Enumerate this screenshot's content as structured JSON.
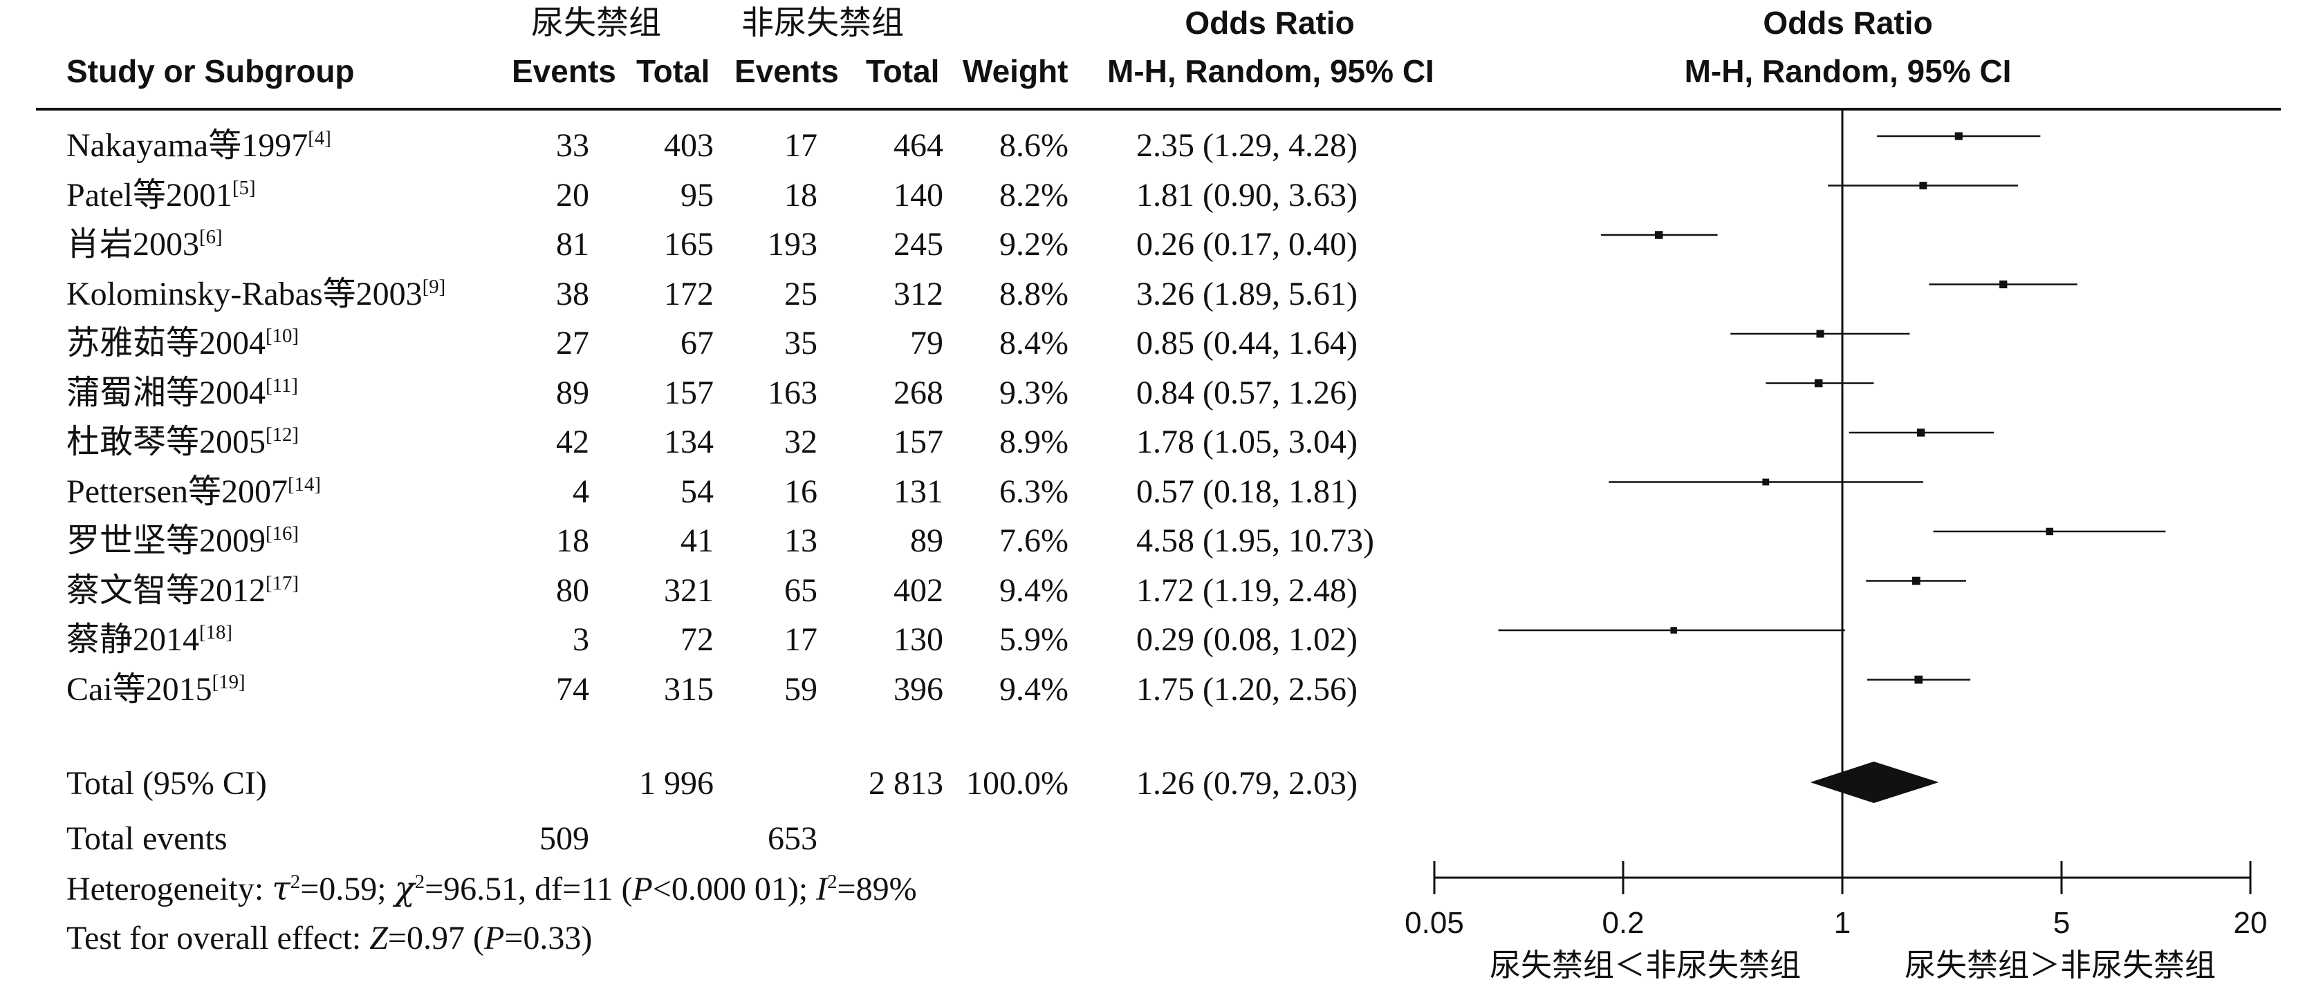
{
  "header": {
    "study_col": "Study or Subgroup",
    "group1": "尿失禁组",
    "group2": "非尿失禁组",
    "events": "Events",
    "total": "Total",
    "weight": "Weight",
    "or_title": "Odds Ratio",
    "or_method": "M-H, Random, 95% CI",
    "plot_title": "Odds Ratio",
    "plot_method": "M-H, Random, 95% CI"
  },
  "rows": [
    {
      "study": "Nakayama等1997",
      "ref": "[4]",
      "e1": "33",
      "t1": "403",
      "e2": "17",
      "t2": "464",
      "weight": "8.6%",
      "ci": "2.35 (1.29, 4.28)"
    },
    {
      "study": "Patel等2001",
      "ref": "[5]",
      "e1": "20",
      "t1": "95",
      "e2": "18",
      "t2": "140",
      "weight": "8.2%",
      "ci": "1.81 (0.90, 3.63)"
    },
    {
      "study": "肖岩2003",
      "ref": "[6]",
      "e1": "81",
      "t1": "165",
      "e2": "193",
      "t2": "245",
      "weight": "9.2%",
      "ci": "0.26 (0.17, 0.40)"
    },
    {
      "study": "Kolominsky-Rabas等2003",
      "ref": "[9]",
      "e1": "38",
      "t1": "172",
      "e2": "25",
      "t2": "312",
      "weight": "8.8%",
      "ci": "3.26 (1.89, 5.61)"
    },
    {
      "study": "苏雅茹等2004",
      "ref": "[10]",
      "e1": "27",
      "t1": "67",
      "e2": "35",
      "t2": "79",
      "weight": "8.4%",
      "ci": "0.85 (0.44, 1.64)"
    },
    {
      "study": "蒲蜀湘等2004",
      "ref": "[11]",
      "e1": "89",
      "t1": "157",
      "e2": "163",
      "t2": "268",
      "weight": "9.3%",
      "ci": "0.84 (0.57, 1.26)"
    },
    {
      "study": "杜敢琴等2005",
      "ref": "[12]",
      "e1": "42",
      "t1": "134",
      "e2": "32",
      "t2": "157",
      "weight": "8.9%",
      "ci": "1.78 (1.05, 3.04)"
    },
    {
      "study": "Pettersen等2007",
      "ref": "[14]",
      "e1": "4",
      "t1": "54",
      "e2": "16",
      "t2": "131",
      "weight": "6.3%",
      "ci": "0.57 (0.18, 1.81)"
    },
    {
      "study": "罗世坚等2009",
      "ref": "[16]",
      "e1": "18",
      "t1": "41",
      "e2": "13",
      "t2": "89",
      "weight": "7.6%",
      "ci": "4.58 (1.95, 10.73)"
    },
    {
      "study": "蔡文智等2012",
      "ref": "[17]",
      "e1": "80",
      "t1": "321",
      "e2": "65",
      "t2": "402",
      "weight": "9.4%",
      "ci": "1.72 (1.19, 2.48)"
    },
    {
      "study": "蔡静2014",
      "ref": "[18]",
      "e1": "3",
      "t1": "72",
      "e2": "17",
      "t2": "130",
      "weight": "5.9%",
      "ci": "0.29 (0.08, 1.02)"
    },
    {
      "study": "Cai等2015",
      "ref": "[19]",
      "e1": "74",
      "t1": "315",
      "e2": "59",
      "t2": "396",
      "weight": "9.4%",
      "ci": "1.75 (1.20, 2.56)"
    }
  ],
  "total": {
    "label": "Total (95% CI)",
    "t1": "1 996",
    "t2": "2 813",
    "weight": "100.0%",
    "ci": "1.26 (0.79, 2.03)"
  },
  "total_events": {
    "label": "Total events",
    "e1": "509",
    "e2": "653"
  },
  "heterogeneity": {
    "label": "Heterogeneity: ",
    "tau_sym": "τ",
    "tau_val": "=0.59; ",
    "chi_sym": "χ",
    "chi_val": "=96.51, df=11 (",
    "p_sym": "P",
    "p_val": "<0.000 01); ",
    "i_sym": "I",
    "i_val": "=89%",
    "sq": "2"
  },
  "overall": {
    "label": "Test for overall effect: ",
    "z_sym": "Z",
    "z_val": "=0.97 (",
    "p_sym": "P",
    "p_val": "=0.33)"
  },
  "chart_data": {
    "type": "forest",
    "scale": "log",
    "xlim": [
      0.05,
      20
    ],
    "ticks": [
      {
        "value": 0.05,
        "label": "0.05"
      },
      {
        "value": 0.2,
        "label": "0.2"
      },
      {
        "value": 1,
        "label": "1"
      },
      {
        "value": 5,
        "label": "5"
      },
      {
        "value": 20,
        "label": "20"
      }
    ],
    "reference_line": 1,
    "direction_labels": {
      "left": "尿失禁组＜非尿失禁组",
      "right": "尿失禁组＞非尿失禁组"
    },
    "points": [
      {
        "or": 2.35,
        "lo": 1.29,
        "hi": 4.28,
        "weight": 8.6
      },
      {
        "or": 1.81,
        "lo": 0.9,
        "hi": 3.63,
        "weight": 8.2
      },
      {
        "or": 0.26,
        "lo": 0.17,
        "hi": 0.4,
        "weight": 9.2
      },
      {
        "or": 3.26,
        "lo": 1.89,
        "hi": 5.61,
        "weight": 8.8
      },
      {
        "or": 0.85,
        "lo": 0.44,
        "hi": 1.64,
        "weight": 8.4
      },
      {
        "or": 0.84,
        "lo": 0.57,
        "hi": 1.26,
        "weight": 9.3
      },
      {
        "or": 1.78,
        "lo": 1.05,
        "hi": 3.04,
        "weight": 8.9
      },
      {
        "or": 0.57,
        "lo": 0.18,
        "hi": 1.81,
        "weight": 6.3
      },
      {
        "or": 4.58,
        "lo": 1.95,
        "hi": 10.73,
        "weight": 7.6
      },
      {
        "or": 1.72,
        "lo": 1.19,
        "hi": 2.48,
        "weight": 9.4
      },
      {
        "or": 0.29,
        "lo": 0.08,
        "hi": 1.02,
        "weight": 5.9
      },
      {
        "or": 1.75,
        "lo": 1.2,
        "hi": 2.56,
        "weight": 9.4
      }
    ],
    "summary": {
      "or": 1.26,
      "lo": 0.79,
      "hi": 2.03
    }
  }
}
